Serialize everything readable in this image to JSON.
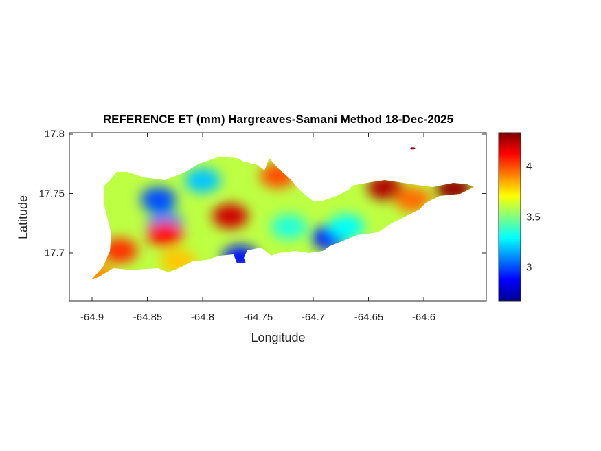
{
  "chart_data": {
    "type": "heatmap",
    "title": "REFERENCE ET (mm) Hargreaves-Samani Method  18-Dec-2025",
    "xlabel": "Longitude",
    "ylabel": "Latitude",
    "xlim": [
      -64.92,
      -64.55
    ],
    "ylim": [
      17.66,
      17.8
    ],
    "xticks": [
      "-64.9",
      "-64.85",
      "-64.8",
      "-64.75",
      "-64.7",
      "-64.65",
      "-64.6"
    ],
    "xtick_values": [
      -64.9,
      -64.85,
      -64.8,
      -64.75,
      -64.7,
      -64.65,
      -64.6
    ],
    "yticks": [
      "17.8",
      "17.75",
      "17.7"
    ],
    "ytick_values": [
      17.8,
      17.75,
      17.7
    ],
    "colorbar": {
      "colormap": "jet",
      "range": [
        2.67,
        4.33
      ],
      "ticks": [
        "4",
        "3.5",
        "3"
      ],
      "tick_values": [
        4,
        3.5,
        3
      ]
    },
    "base_value": 3.6,
    "hotspots": [
      {
        "lon": -64.84,
        "lat": 17.745,
        "value": 3.0
      },
      {
        "lon": -64.834,
        "lat": 17.725,
        "value": 3.1
      },
      {
        "lon": -64.8,
        "lat": 17.761,
        "value": 3.2
      },
      {
        "lon": -64.685,
        "lat": 17.713,
        "value": 2.9
      },
      {
        "lon": -64.766,
        "lat": 17.696,
        "value": 2.9
      },
      {
        "lon": -64.67,
        "lat": 17.722,
        "value": 3.3
      },
      {
        "lon": -64.722,
        "lat": 17.722,
        "value": 3.35
      },
      {
        "lon": -64.775,
        "lat": 17.731,
        "value": 4.2
      },
      {
        "lon": -64.834,
        "lat": 17.716,
        "value": 4.1
      },
      {
        "lon": -64.875,
        "lat": 17.702,
        "value": 4.05
      },
      {
        "lon": -64.635,
        "lat": 17.755,
        "value": 4.25
      },
      {
        "lon": -64.573,
        "lat": 17.754,
        "value": 4.3
      },
      {
        "lon": -64.732,
        "lat": 17.765,
        "value": 4.0
      },
      {
        "lon": -64.822,
        "lat": 17.693,
        "value": 3.8
      },
      {
        "lon": -64.61,
        "lat": 17.745,
        "value": 3.95
      },
      {
        "lon": -64.896,
        "lat": 17.681,
        "value": 3.9
      }
    ],
    "islet": {
      "lon": -64.61,
      "lat": 17.788,
      "value": 4.3
    }
  }
}
